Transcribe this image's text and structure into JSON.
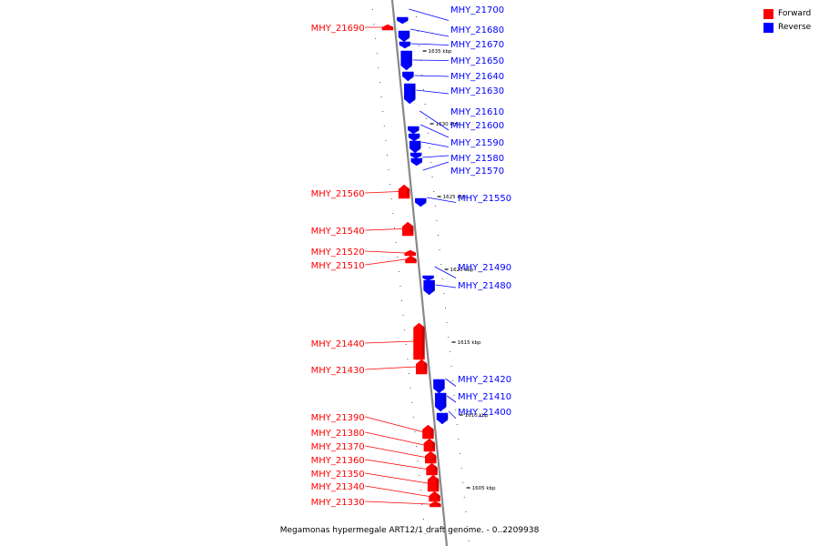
{
  "caption": "Megamonas hypermegale ART12/1 draft genome. - 0..2209938",
  "legend": [
    {
      "label": "Forward",
      "color": "#ff0000"
    },
    {
      "label": "Reverse",
      "color": "#0000ff"
    }
  ],
  "colors": {
    "forward": "#ff0000",
    "reverse": "#0000ff",
    "backbone": "#888888"
  },
  "ticks": [
    "1635 kbp",
    "1630 kbp",
    "1625 kbp",
    "1620 kbp",
    "1615 kbp",
    "1610 kbp",
    "1605 kbp"
  ],
  "genes": [
    {
      "id": "MHY_21700",
      "strand": "reverse"
    },
    {
      "id": "MHY_21690",
      "strand": "forward"
    },
    {
      "id": "MHY_21680",
      "strand": "reverse"
    },
    {
      "id": "MHY_21670",
      "strand": "reverse"
    },
    {
      "id": "MHY_21650",
      "strand": "reverse"
    },
    {
      "id": "MHY_21640",
      "strand": "reverse"
    },
    {
      "id": "MHY_21630",
      "strand": "reverse"
    },
    {
      "id": "MHY_21610",
      "strand": "reverse"
    },
    {
      "id": "MHY_21600",
      "strand": "reverse"
    },
    {
      "id": "MHY_21590",
      "strand": "reverse"
    },
    {
      "id": "MHY_21580",
      "strand": "reverse"
    },
    {
      "id": "MHY_21570",
      "strand": "reverse"
    },
    {
      "id": "MHY_21560",
      "strand": "forward"
    },
    {
      "id": "MHY_21550",
      "strand": "reverse"
    },
    {
      "id": "MHY_21540",
      "strand": "forward"
    },
    {
      "id": "MHY_21520",
      "strand": "forward"
    },
    {
      "id": "MHY_21510",
      "strand": "forward"
    },
    {
      "id": "MHY_21490",
      "strand": "reverse"
    },
    {
      "id": "MHY_21480",
      "strand": "reverse"
    },
    {
      "id": "MHY_21440",
      "strand": "forward"
    },
    {
      "id": "MHY_21430",
      "strand": "forward"
    },
    {
      "id": "MHY_21420",
      "strand": "reverse"
    },
    {
      "id": "MHY_21410",
      "strand": "reverse"
    },
    {
      "id": "MHY_21400",
      "strand": "reverse"
    },
    {
      "id": "MHY_21390",
      "strand": "forward"
    },
    {
      "id": "MHY_21380",
      "strand": "forward"
    },
    {
      "id": "MHY_21370",
      "strand": "forward"
    },
    {
      "id": "MHY_21360",
      "strand": "forward"
    },
    {
      "id": "MHY_21350",
      "strand": "forward"
    },
    {
      "id": "MHY_21340",
      "strand": "forward"
    },
    {
      "id": "MHY_21330",
      "strand": "forward"
    }
  ]
}
